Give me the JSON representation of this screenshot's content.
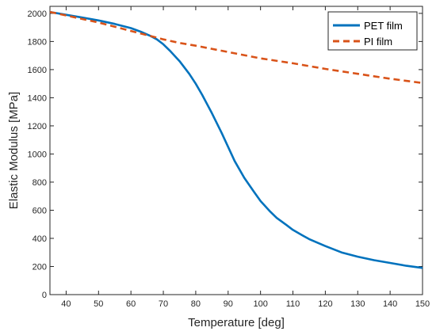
{
  "chart_data": {
    "type": "line",
    "title": "",
    "xlabel": "Temperature [deg]",
    "ylabel": "Elastic Modulus [MPa]",
    "xlim": [
      35,
      150
    ],
    "ylim": [
      0,
      2050
    ],
    "xticks": [
      40,
      50,
      60,
      70,
      80,
      90,
      100,
      110,
      120,
      130,
      140,
      150
    ],
    "yticks": [
      0,
      200,
      400,
      600,
      800,
      1000,
      1200,
      1400,
      1600,
      1800,
      2000
    ],
    "grid": false,
    "legend_position": "top-right",
    "series": [
      {
        "name": "PET film",
        "color": "#0072BD",
        "style": "solid",
        "x": [
          35,
          40,
          45,
          50,
          55,
          60,
          63,
          66,
          68,
          70,
          72,
          75,
          78,
          80,
          82,
          85,
          88,
          90,
          92,
          95,
          98,
          100,
          103,
          105,
          108,
          110,
          113,
          115,
          118,
          120,
          125,
          130,
          135,
          140,
          145,
          150
        ],
        "y": [
          2010,
          1990,
          1970,
          1950,
          1925,
          1895,
          1870,
          1840,
          1815,
          1780,
          1735,
          1660,
          1570,
          1500,
          1420,
          1290,
          1150,
          1050,
          950,
          830,
          730,
          665,
          590,
          545,
          495,
          460,
          420,
          395,
          365,
          345,
          300,
          270,
          245,
          225,
          205,
          190
        ]
      },
      {
        "name": "PI film",
        "color": "#D95319",
        "style": "dashed",
        "x": [
          35,
          40,
          45,
          50,
          55,
          60,
          65,
          70,
          75,
          80,
          90,
          100,
          110,
          120,
          130,
          140,
          150
        ],
        "y": [
          2010,
          1985,
          1960,
          1935,
          1905,
          1875,
          1845,
          1815,
          1790,
          1770,
          1725,
          1680,
          1645,
          1605,
          1570,
          1535,
          1505
        ]
      }
    ]
  }
}
